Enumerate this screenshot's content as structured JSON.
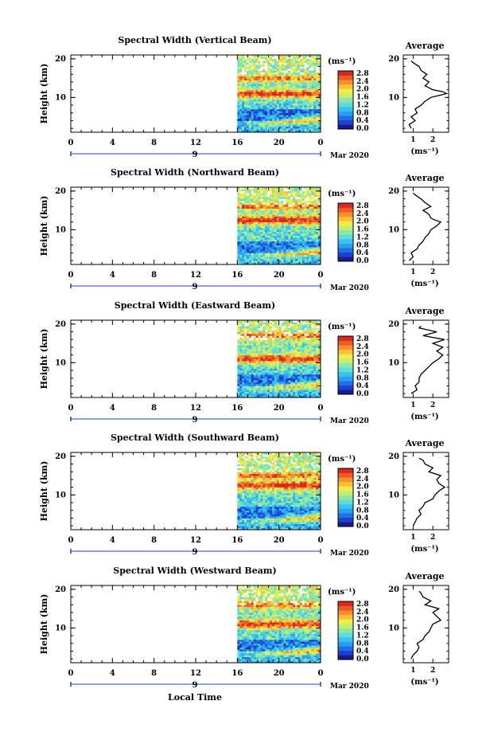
{
  "chart_data": {
    "type": "heatmap",
    "panels": [
      {
        "title": "Spectral Width (Vertical Beam)",
        "average_title": "Average",
        "average_ticks": [
          "1",
          "2"
        ],
        "average_xlim": [
          0.5,
          2.8
        ],
        "profile_height": [
          2.0,
          3.0,
          4.0,
          5.0,
          6.0,
          7.0,
          8.0,
          9.0,
          10.0,
          10.5,
          11.0,
          11.5,
          12.0,
          12.5,
          13.0,
          14.0,
          15.0,
          16.0,
          17.0,
          18.0,
          19.0,
          19.5
        ],
        "profile_width": [
          0.9,
          0.8,
          1.1,
          0.9,
          1.2,
          1.1,
          1.4,
          1.6,
          1.9,
          2.3,
          2.7,
          2.5,
          2.0,
          1.8,
          1.6,
          1.8,
          1.5,
          1.7,
          1.4,
          1.3,
          1.0,
          0.9
        ]
      },
      {
        "title": "Spectral Width (Northward Beam)",
        "average_title": "Average",
        "average_ticks": [
          "1",
          "2"
        ],
        "average_xlim": [
          0.5,
          2.8
        ],
        "profile_height": [
          2.0,
          3.0,
          4.0,
          5.0,
          6.0,
          7.0,
          8.0,
          9.0,
          10.0,
          11.0,
          12.0,
          12.5,
          13.0,
          14.0,
          15.0,
          16.0,
          17.0,
          18.0,
          19.0,
          19.5
        ],
        "profile_width": [
          0.8,
          1.0,
          0.9,
          1.2,
          1.3,
          1.5,
          1.6,
          1.8,
          1.9,
          2.2,
          2.4,
          2.1,
          1.9,
          1.8,
          1.5,
          1.9,
          1.6,
          1.4,
          1.1,
          1.0
        ]
      },
      {
        "title": "Spectral Width (Eastward Beam)",
        "average_title": "Average",
        "average_ticks": [
          "1",
          "2"
        ],
        "average_xlim": [
          0.5,
          2.8
        ],
        "profile_height": [
          2.0,
          3.0,
          4.0,
          5.0,
          6.0,
          7.0,
          8.0,
          9.0,
          10.0,
          11.0,
          12.0,
          13.0,
          14.0,
          15.0,
          16.0,
          17.0,
          18.0,
          19.0,
          19.5
        ],
        "profile_width": [
          0.9,
          1.2,
          1.1,
          1.3,
          1.3,
          1.4,
          1.6,
          1.8,
          2.0,
          2.3,
          2.5,
          2.2,
          2.5,
          2.0,
          2.6,
          1.5,
          2.2,
          1.3,
          1.4
        ]
      },
      {
        "title": "Spectral Width (Southward Beam)",
        "average_title": "Average",
        "average_ticks": [
          "1",
          "2"
        ],
        "average_xlim": [
          0.5,
          2.8
        ],
        "profile_height": [
          2.0,
          3.0,
          4.0,
          5.0,
          6.0,
          7.0,
          8.0,
          9.0,
          10.0,
          11.0,
          12.0,
          13.0,
          14.0,
          15.0,
          16.0,
          17.0,
          18.0,
          19.0,
          19.5
        ],
        "profile_width": [
          1.0,
          1.1,
          1.2,
          1.4,
          1.3,
          1.5,
          1.6,
          2.0,
          2.1,
          2.3,
          2.6,
          2.3,
          2.2,
          2.4,
          1.8,
          2.0,
          1.6,
          1.5,
          1.3
        ]
      },
      {
        "title": "Spectral Width (Westward Beam)",
        "average_title": "Average",
        "average_ticks": [
          "1",
          "2"
        ],
        "average_xlim": [
          0.5,
          2.8
        ],
        "profile_height": [
          2.0,
          3.0,
          4.0,
          5.0,
          6.0,
          7.0,
          8.0,
          9.0,
          10.0,
          11.0,
          12.0,
          13.0,
          14.0,
          15.0,
          16.0,
          17.0,
          18.0,
          19.0,
          19.5
        ],
        "profile_width": [
          0.9,
          1.0,
          1.2,
          1.3,
          1.2,
          1.5,
          1.6,
          1.8,
          1.9,
          2.0,
          2.4,
          2.2,
          2.0,
          2.3,
          1.6,
          1.9,
          1.5,
          1.4,
          1.3
        ]
      }
    ],
    "x_ticks": [
      "0",
      "4",
      "8",
      "12",
      "16",
      "20",
      "0"
    ],
    "xlim": [
      0,
      24
    ],
    "y_ticks": [
      "20",
      "10"
    ],
    "ylim": [
      1,
      21
    ],
    "ylabel": "Height (km)",
    "xlabel": "Local Time",
    "date_label": "Mar 2020",
    "date_day": "9",
    "colorbar_unit": "(ms⁻¹)",
    "colorbar_ticks": [
      "2.8",
      "2.4",
      "2.0",
      "1.6",
      "1.2",
      "0.8",
      "0.4",
      "0.0"
    ],
    "average_unit": "(ms⁻¹)",
    "data_start_hour": 16,
    "data_end_hour": 24
  }
}
